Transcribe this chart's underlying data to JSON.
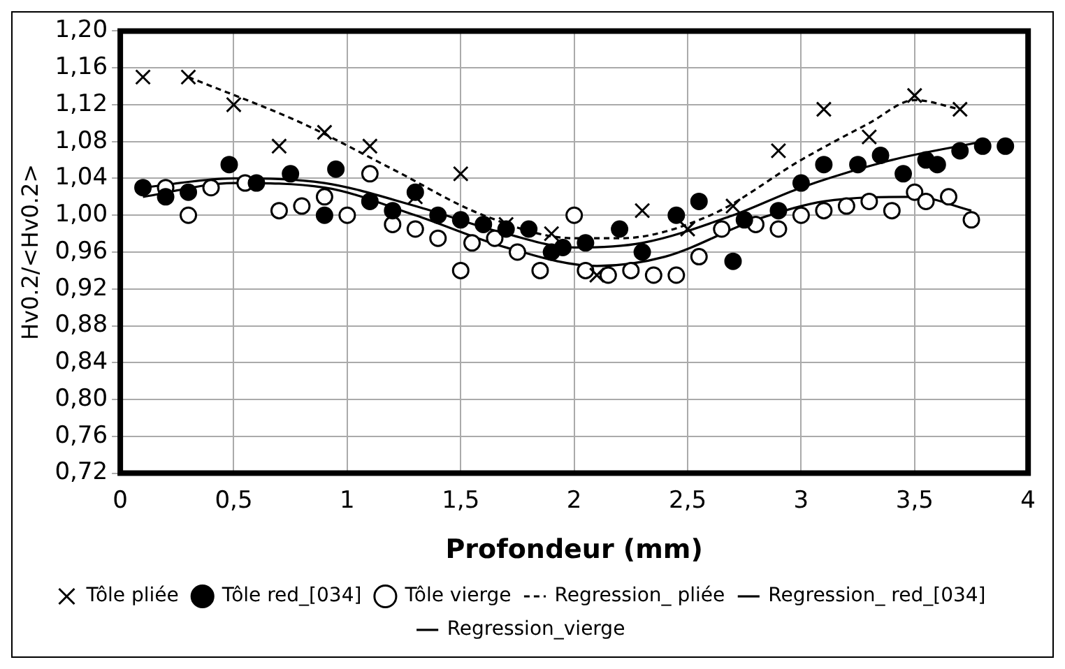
{
  "chart_data": {
    "type": "scatter",
    "xlabel": "Profondeur (mm)",
    "ylabel": "Hv0.2/<Hv0.2>",
    "xlim": [
      0,
      4
    ],
    "xticks": [
      0,
      {
        "value": 0.5,
        "label": "0,5"
      },
      1,
      {
        "value": 1.5,
        "label": "1,5"
      },
      2,
      {
        "value": 2.5,
        "label": "2,5"
      },
      3,
      {
        "value": 3.5,
        "label": "3,5"
      },
      4
    ],
    "ylim": [
      0.72,
      1.2
    ],
    "yticks": [
      {
        "value": 0.72,
        "label": "0,72"
      },
      {
        "value": 0.76,
        "label": "0,76"
      },
      {
        "value": 0.8,
        "label": "0,80"
      },
      {
        "value": 0.84,
        "label": "0,84"
      },
      {
        "value": 0.88,
        "label": "0,88"
      },
      {
        "value": 0.92,
        "label": "0,92"
      },
      {
        "value": 0.96,
        "label": "0,96"
      },
      {
        "value": 1.0,
        "label": "1,00"
      },
      {
        "value": 1.04,
        "label": "1,04"
      },
      {
        "value": 1.08,
        "label": "1,08"
      },
      {
        "value": 1.12,
        "label": "1,12"
      },
      {
        "value": 1.16,
        "label": "1,16"
      },
      {
        "value": 1.2,
        "label": "1,20"
      }
    ],
    "grid": true,
    "legend": "bottom",
    "series": [
      {
        "name": "Tôle pliée",
        "marker": "cross",
        "color": "#000000",
        "x": [
          0.1,
          0.3,
          0.5,
          0.7,
          0.9,
          1.1,
          1.3,
          1.5,
          1.7,
          1.9,
          2.1,
          2.3,
          2.5,
          2.7,
          2.9,
          3.1,
          3.3,
          3.5,
          3.7
        ],
        "values": [
          1.15,
          1.15,
          1.12,
          1.075,
          1.09,
          1.075,
          1.02,
          1.045,
          0.99,
          0.98,
          0.935,
          1.005,
          0.985,
          1.01,
          1.07,
          1.115,
          1.085,
          1.13,
          1.115
        ]
      },
      {
        "name": "Tôle red_[034]",
        "marker": "circle",
        "color": "#000000",
        "x": [
          0.1,
          0.2,
          0.3,
          0.48,
          0.6,
          0.75,
          0.9,
          0.95,
          1.1,
          1.2,
          1.3,
          1.4,
          1.5,
          1.6,
          1.7,
          1.8,
          1.9,
          1.95,
          2.05,
          2.2,
          2.3,
          2.45,
          2.55,
          2.7,
          2.75,
          2.9,
          3.0,
          3.1,
          3.25,
          3.35,
          3.45,
          3.55,
          3.6,
          3.7,
          3.8,
          3.9
        ],
        "values": [
          1.03,
          1.02,
          1.025,
          1.055,
          1.035,
          1.045,
          1.0,
          1.05,
          1.015,
          1.005,
          1.025,
          1.0,
          0.995,
          0.99,
          0.985,
          0.985,
          0.96,
          0.965,
          0.97,
          0.985,
          0.96,
          1.0,
          1.015,
          0.95,
          0.995,
          1.005,
          1.035,
          1.055,
          1.055,
          1.065,
          1.045,
          1.06,
          1.055,
          1.07,
          1.075,
          1.075
        ]
      },
      {
        "name": "Tôle vierge",
        "marker": "circle",
        "color": "#ffffff",
        "x": [
          0.2,
          0.3,
          0.4,
          0.55,
          0.7,
          0.8,
          0.9,
          1.0,
          1.1,
          1.2,
          1.3,
          1.4,
          1.5,
          1.55,
          1.65,
          1.75,
          1.85,
          2.0,
          2.05,
          2.15,
          2.25,
          2.35,
          2.45,
          2.55,
          2.65,
          2.8,
          2.9,
          3.0,
          3.1,
          3.2,
          3.3,
          3.4,
          3.5,
          3.55,
          3.65,
          3.75
        ],
        "values": [
          1.03,
          1.0,
          1.03,
          1.035,
          1.005,
          1.01,
          1.02,
          1.0,
          1.045,
          0.99,
          0.985,
          0.975,
          0.94,
          0.97,
          0.975,
          0.96,
          0.94,
          1.0,
          0.94,
          0.935,
          0.94,
          0.935,
          0.935,
          0.955,
          0.985,
          0.99,
          0.985,
          1.0,
          1.005,
          1.01,
          1.015,
          1.005,
          1.025,
          1.015,
          1.02,
          0.995
        ]
      },
      {
        "name": "Regression_ pliée",
        "type": "line",
        "line_style": "dashed",
        "color": "#000000",
        "x": [
          0.3,
          0.8,
          1.2,
          1.6,
          2.0,
          2.2,
          2.6,
          3.0,
          3.3,
          3.5,
          3.7
        ],
        "values": [
          1.15,
          1.1,
          1.05,
          1.0,
          0.975,
          0.975,
          1.0,
          1.06,
          1.1,
          1.125,
          1.115
        ]
      },
      {
        "name": "Regression_ red_[034]",
        "type": "line",
        "line_style": "solid",
        "color": "#000000",
        "x": [
          0.1,
          0.5,
          0.9,
          1.3,
          1.7,
          2.0,
          2.3,
          2.7,
          3.0,
          3.4,
          3.8
        ],
        "values": [
          1.03,
          1.04,
          1.035,
          1.01,
          0.98,
          0.965,
          0.97,
          1.0,
          1.03,
          1.06,
          1.08
        ]
      },
      {
        "name": "Regression_vierge",
        "type": "line",
        "line_style": "solid",
        "color": "#000000",
        "x": [
          0.1,
          0.5,
          0.9,
          1.3,
          1.7,
          2.1,
          2.4,
          2.8,
          3.1,
          3.5,
          3.75
        ],
        "values": [
          1.02,
          1.035,
          1.03,
          1.0,
          0.965,
          0.945,
          0.955,
          0.995,
          1.015,
          1.02,
          1.005
        ]
      }
    ]
  }
}
